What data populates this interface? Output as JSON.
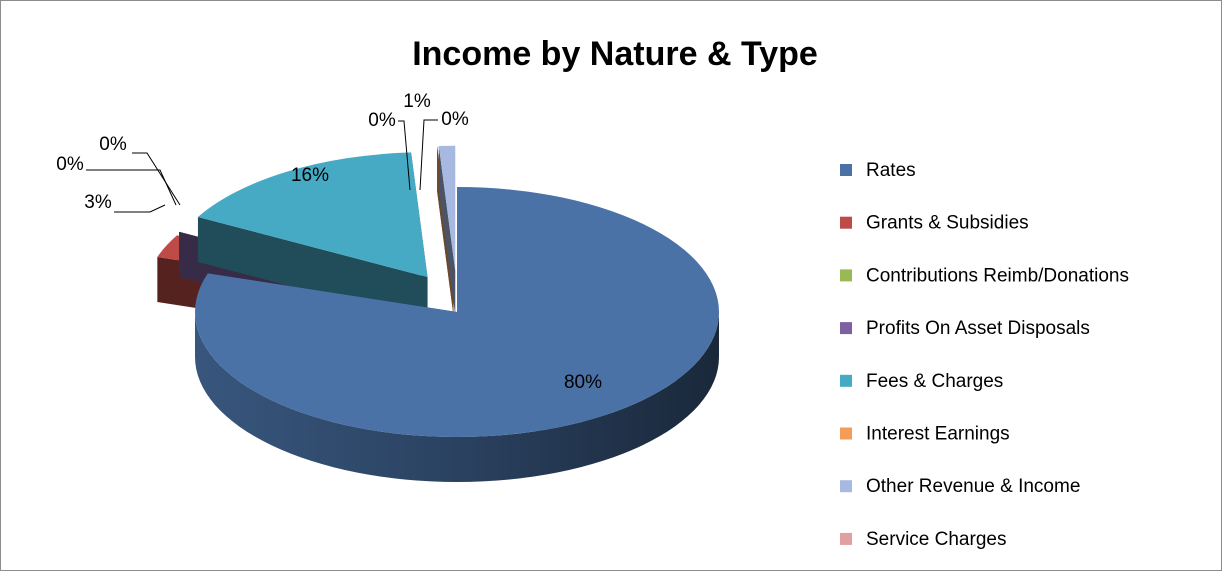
{
  "chart_data": {
    "type": "pie",
    "title": "Income by Nature &  Type",
    "categories": [
      "Rates",
      "Grants & Subsidies",
      "Contributions Reimb/Donations",
      "Profits On Asset Disposals",
      "Fees & Charges",
      "Interest Earnings",
      "Other Revenue & Income",
      "Service Charges"
    ],
    "values": [
      80,
      3,
      0,
      0,
      16,
      0,
      1,
      0
    ],
    "value_labels": [
      "80%",
      "3%",
      "0%",
      "0%",
      "16%",
      "0%",
      "1%",
      "0%"
    ],
    "colors": [
      "#4a72a6",
      "#be4b48",
      "#98b954",
      "#7d60a0",
      "#46aac5",
      "#f59d56",
      "#a7b9e0",
      "#e0a09e"
    ],
    "legend": "right"
  }
}
